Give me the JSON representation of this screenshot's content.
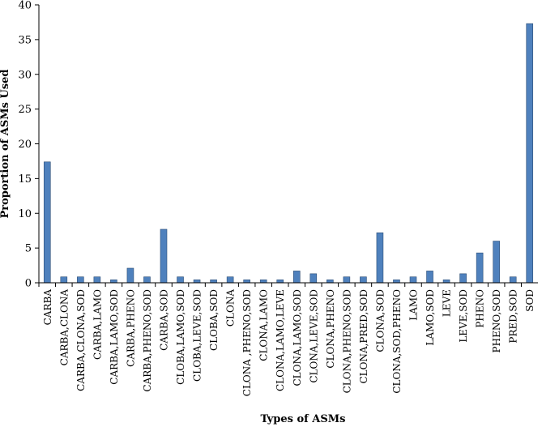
{
  "chart_data": {
    "type": "bar",
    "xlabel": "Types of ASMs",
    "ylabel": "Proportion of ASMs Used",
    "ylim": [
      0,
      40
    ],
    "yticks": [
      0,
      5,
      10,
      15,
      20,
      25,
      30,
      35,
      40
    ],
    "grid": false,
    "legend": "none",
    "bar_color": "#4f81bd",
    "categories": [
      "CARBA",
      "CARBA,CLONA",
      "CARBA,CLONA,SOD",
      "CARBA,LAMO",
      "CARBA,LAMO,SOD",
      "CARBA,PHENO",
      "CARBA,PHENO,SOD",
      "CARBA,SOD",
      "CLOBA,LAMO,SOD",
      "CLOBA,LEVE,SOD",
      "CLOBA,SOD",
      "CLONA",
      "CLONA ,PHENO,SOD",
      "CLONA,LAMO",
      "CLONA,LAMO,LEVE",
      "CLONA,LAMO,SOD",
      "CLONA,LEVE,SOD",
      "CLONA,PHENO",
      "CLONA,PHENO,SOD",
      "CLONA,PRED,SOD",
      "CLONA,SOD",
      "CLONA,SOD,PHENO",
      "LAMO",
      "LAMO,SOD",
      "LEVE",
      "LEVE,SOD",
      "PHENO",
      "PHENO,SOD",
      "PRED,SOD",
      "SOD"
    ],
    "values": [
      17.4,
      0.85,
      0.85,
      0.85,
      0.43,
      2.1,
      0.85,
      7.7,
      0.85,
      0.43,
      0.43,
      0.85,
      0.43,
      0.43,
      0.43,
      1.7,
      1.3,
      0.43,
      0.85,
      0.85,
      7.2,
      0.43,
      0.85,
      1.7,
      0.43,
      1.3,
      4.3,
      6.0,
      0.85,
      37.3
    ]
  }
}
